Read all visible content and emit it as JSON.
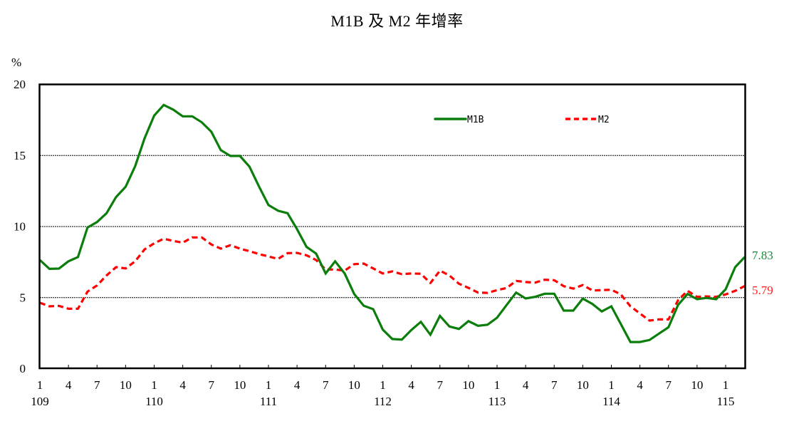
{
  "title": "M1B 及 M2 年增率",
  "y_unit": "%",
  "colors": {
    "m1b": "#0a7d0a",
    "m2": "#ff0000",
    "m1b_label": "#1a8a3a",
    "m2_label": "#ff2020"
  },
  "legend": {
    "m1b": "M1B",
    "m2": "M2"
  },
  "end_labels": {
    "m1b": "7.83",
    "m2": "5.79"
  },
  "chart_data": {
    "type": "line",
    "title": "M1B 及 M2 年增率",
    "xlabel": "",
    "ylabel": "%",
    "ylim": [
      0,
      20
    ],
    "yticks": [
      0,
      5,
      10,
      15,
      20
    ],
    "grid": "horizontal dotted at 5, 10, 15",
    "legend_position": "upper right inside plot",
    "x_tick_months": [
      "1",
      "4",
      "7",
      "10",
      "1",
      "4",
      "7",
      "10",
      "1",
      "4",
      "7",
      "10",
      "1",
      "4",
      "7",
      "10",
      "1",
      "4",
      "7",
      "10",
      "1",
      "4",
      "7",
      "10",
      "1"
    ],
    "x_tick_years": [
      {
        "label": "109",
        "index": 0
      },
      {
        "label": "110",
        "index": 12
      },
      {
        "label": "111",
        "index": 24
      },
      {
        "label": "112",
        "index": 36
      },
      {
        "label": "113",
        "index": 48
      },
      {
        "label": "114",
        "index": 60
      },
      {
        "label": "115",
        "index": 72
      }
    ],
    "x_start": "109/1",
    "x_end": "115/3",
    "series": [
      {
        "name": "M1B",
        "values": [
          7.62,
          7.0,
          7.02,
          7.53,
          7.83,
          9.91,
          10.29,
          10.91,
          12.05,
          12.77,
          14.22,
          16.19,
          17.78,
          18.53,
          18.2,
          17.73,
          17.73,
          17.31,
          16.64,
          15.35,
          14.94,
          14.94,
          14.19,
          12.8,
          11.49,
          11.09,
          10.91,
          9.79,
          8.54,
          8.07,
          6.67,
          7.53,
          6.67,
          5.23,
          4.4,
          4.16,
          2.72,
          2.06,
          2.02,
          2.69,
          3.27,
          2.36,
          3.69,
          2.94,
          2.77,
          3.32,
          2.99,
          3.07,
          3.56,
          4.45,
          5.33,
          4.91,
          5.03,
          5.25,
          5.25,
          4.06,
          4.06,
          4.9,
          4.53,
          4.0,
          4.36,
          3.11,
          1.85,
          1.85,
          1.99,
          2.44,
          2.89,
          4.45,
          5.23,
          4.86,
          4.95,
          4.86,
          5.56,
          7.12,
          7.83
        ]
      },
      {
        "name": "M2",
        "values": [
          4.61,
          4.36,
          4.39,
          4.19,
          4.19,
          5.4,
          5.83,
          6.53,
          7.12,
          7.03,
          7.53,
          8.37,
          8.79,
          9.12,
          8.96,
          8.84,
          9.21,
          9.21,
          8.71,
          8.42,
          8.66,
          8.42,
          8.24,
          8.04,
          7.87,
          7.7,
          8.1,
          8.12,
          7.95,
          7.62,
          6.95,
          6.95,
          6.87,
          7.33,
          7.37,
          7.03,
          6.67,
          6.82,
          6.62,
          6.67,
          6.65,
          6.0,
          6.87,
          6.53,
          5.95,
          5.66,
          5.33,
          5.31,
          5.5,
          5.65,
          6.15,
          6.07,
          6.03,
          6.23,
          6.2,
          5.78,
          5.61,
          5.86,
          5.48,
          5.5,
          5.53,
          5.2,
          4.36,
          3.86,
          3.36,
          3.44,
          3.44,
          4.78,
          5.45,
          5.03,
          5.06,
          5.03,
          5.2,
          5.45,
          5.79
        ]
      }
    ],
    "annotations": [
      {
        "text": "7.83",
        "series": "M1B",
        "position": "end"
      },
      {
        "text": "5.79",
        "series": "M2",
        "position": "end"
      }
    ]
  }
}
